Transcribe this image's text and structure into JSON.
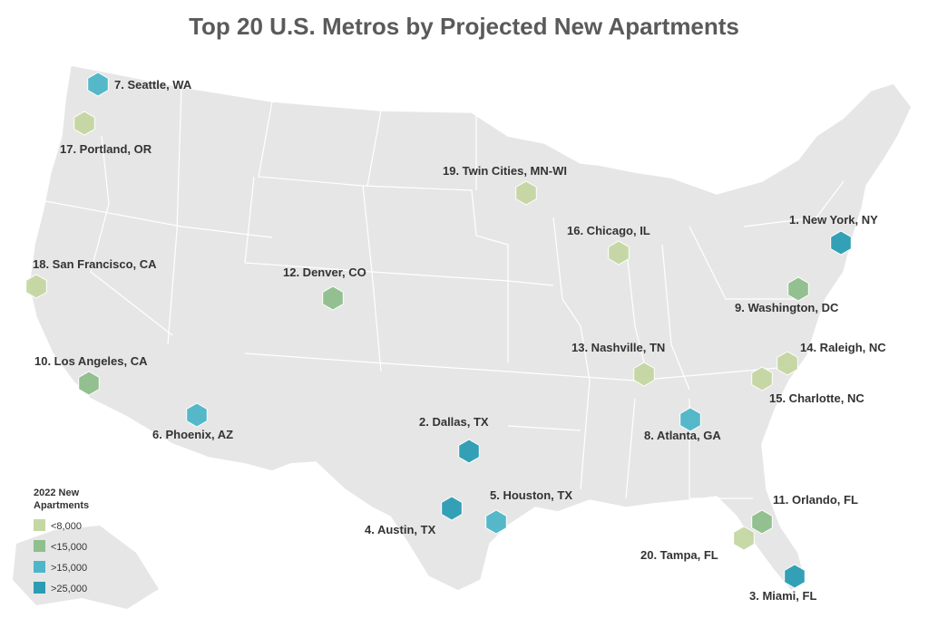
{
  "title": "Top 20 U.S. Metros by Projected New Apartments",
  "legend": {
    "title_line1": "2022 New",
    "title_line2": "Apartments",
    "items": [
      {
        "label": "<8,000",
        "color": "#c5d7a2"
      },
      {
        "label": "<15,000",
        "color": "#8fbf8c"
      },
      {
        "label": ">15,000",
        "color": "#4db6c8"
      },
      {
        "label": ">25,000",
        "color": "#2b9db3"
      }
    ]
  },
  "metros": [
    {
      "label": "1. New York, NY",
      "tier": 3
    },
    {
      "label": "2. Dallas, TX",
      "tier": 3
    },
    {
      "label": "3. Miami, FL",
      "tier": 3
    },
    {
      "label": "4. Austin, TX",
      "tier": 3
    },
    {
      "label": "5. Houston, TX",
      "tier": 2
    },
    {
      "label": "6. Phoenix, AZ",
      "tier": 2
    },
    {
      "label": "7. Seattle, WA",
      "tier": 2
    },
    {
      "label": "8. Atlanta, GA",
      "tier": 2
    },
    {
      "label": "9. Washington, DC",
      "tier": 1
    },
    {
      "label": "10. Los Angeles, CA",
      "tier": 1
    },
    {
      "label": "11. Orlando, FL",
      "tier": 1
    },
    {
      "label": "12. Denver, CO",
      "tier": 1
    },
    {
      "label": "13. Nashville, TN",
      "tier": 0
    },
    {
      "label": "14. Raleigh, NC",
      "tier": 0
    },
    {
      "label": "15. Charlotte, NC",
      "tier": 0
    },
    {
      "label": "16. Chicago, IL",
      "tier": 0
    },
    {
      "label": "17. Portland, OR",
      "tier": 0
    },
    {
      "label": "18. San Francisco, CA",
      "tier": 0
    },
    {
      "label": "19. Twin Cities, MN-WI",
      "tier": 0
    },
    {
      "label": "20. Tampa, FL",
      "tier": 0
    }
  ]
}
